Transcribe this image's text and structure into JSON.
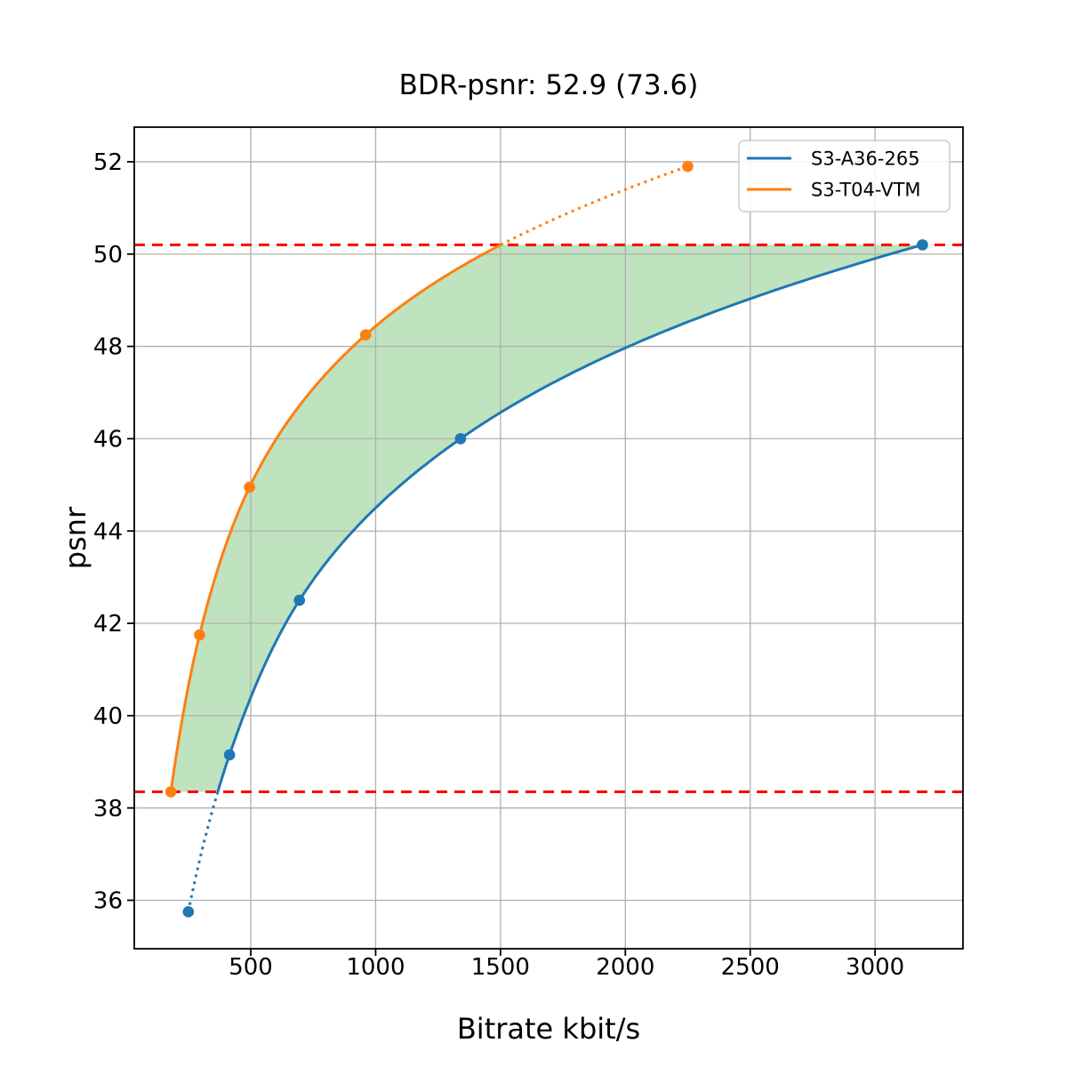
{
  "chart_data": {
    "type": "line",
    "title": "BDR-psnr: 52.9 (73.6)",
    "xlabel": "Bitrate kbit/s",
    "ylabel": "psnr",
    "xlim": [
      33.5,
      3352
    ],
    "ylim": [
      34.95,
      52.75
    ],
    "xticks": [
      500,
      1000,
      1500,
      2000,
      2500,
      3000
    ],
    "yticks": [
      36,
      38,
      40,
      42,
      44,
      46,
      48,
      50,
      52
    ],
    "grid": true,
    "grid_color": "#b0b0b0",
    "background_color": "#ffffff",
    "series": [
      {
        "name": "S3-A36-265",
        "color": "#1f77b4",
        "marker": "circle",
        "x": [
          250,
          415,
          695,
          1340,
          3190
        ],
        "y": [
          35.75,
          39.15,
          42.5,
          46.0,
          50.2
        ]
      },
      {
        "name": "S3-T04-VTM",
        "color": "#ff7f0e",
        "marker": "circle",
        "x": [
          180,
          295,
          495,
          960,
          2250
        ],
        "y": [
          38.35,
          41.75,
          44.95,
          48.25,
          51.9
        ]
      }
    ],
    "curve_style": "solid inside overlap range, dotted outside overlap range",
    "overlap_band": {
      "y_low": 38.35,
      "y_high": 50.2,
      "line_color": "#ff0000",
      "line_style": "dashed",
      "fill_color": "#2ca02c",
      "fill_alpha": 0.3
    },
    "legend": {
      "position": "upper right",
      "entries": [
        "S3-A36-265",
        "S3-T04-VTM"
      ]
    }
  }
}
